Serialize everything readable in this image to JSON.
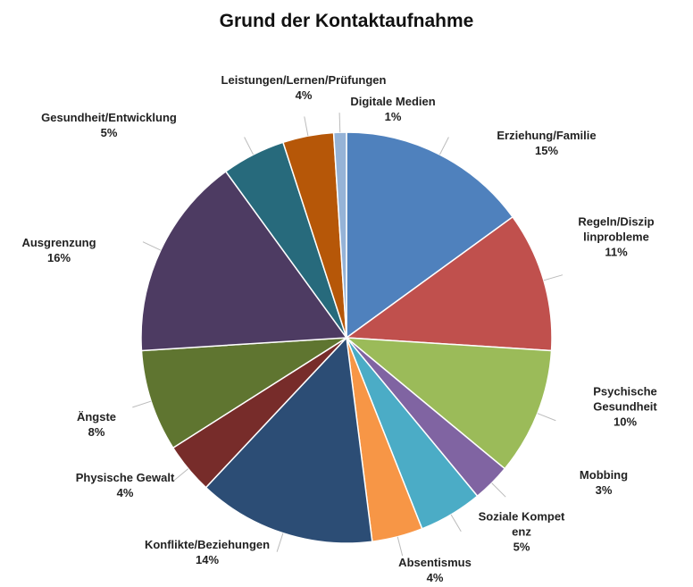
{
  "chart_data": {
    "type": "pie",
    "title": "Grund der Kontaktaufnahme",
    "categories": [
      "Erziehung/Familie",
      "Regeln/Disziplinprobleme",
      "Psychische Gesundheit",
      "Mobbing",
      "Soziale Kompetenz",
      "Absentismus",
      "Konflikte/Beziehungen",
      "Physische Gewalt",
      "Ängste",
      "Ausgrenzung",
      "Gesundheit/Entwicklung",
      "Leistungen/Lernen/Prüfungen",
      "Digitale Medien"
    ],
    "values": [
      15,
      11,
      10,
      3,
      5,
      4,
      14,
      4,
      8,
      16,
      5,
      4,
      1
    ],
    "value_labels": [
      "15%",
      "11%",
      "10%",
      "3%",
      "5%",
      "4%",
      "14%",
      "4%",
      "8%",
      "16%",
      "5%",
      "4%",
      "1%"
    ],
    "colors": [
      "#4f81bd",
      "#c0504d",
      "#9bbb59",
      "#8064a2",
      "#4bacc6",
      "#f79646",
      "#2c4d75",
      "#772c2a",
      "#5f7530",
      "#4d3b62",
      "#276a7c",
      "#b65708",
      "#95b3d7"
    ]
  }
}
